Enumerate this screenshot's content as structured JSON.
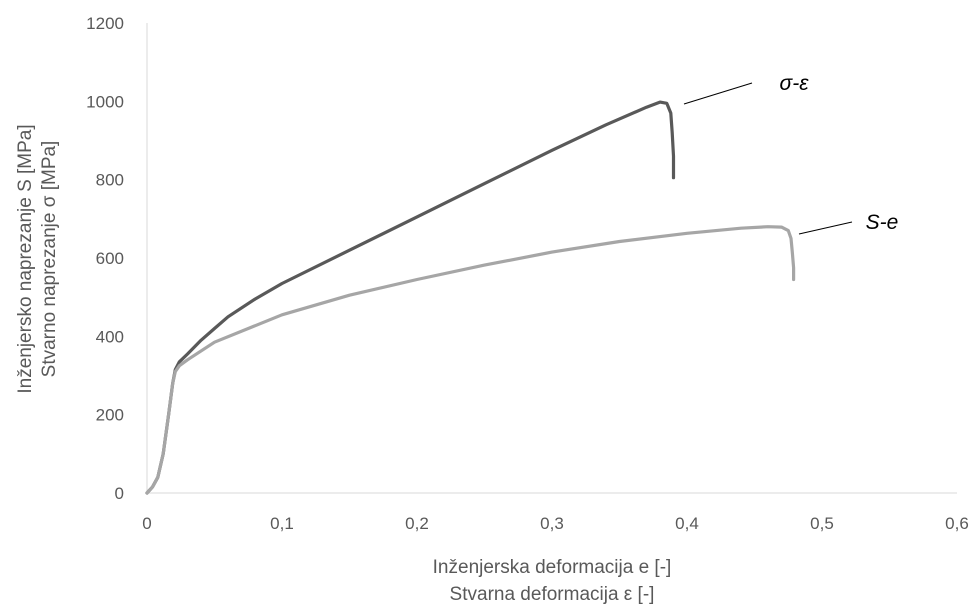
{
  "chart_data": {
    "type": "line",
    "xlabel": "Inženjerska deformacija e [-]",
    "xlabel_secondary": "Stvarna deformacija ε [-]",
    "ylabel": "Inženjersko naprezanje S [MPa]",
    "ylabel_secondary": "Stvarno naprezanje σ [MPa]",
    "xlim": [
      0,
      0.6
    ],
    "ylim": [
      0,
      1200
    ],
    "x_ticks": [
      0,
      0.1,
      0.2,
      0.3,
      0.4,
      0.5,
      0.6
    ],
    "x_tick_labels": [
      "0",
      "0,1",
      "0,2",
      "0,3",
      "0,4",
      "0,5",
      "0,6"
    ],
    "y_ticks": [
      0,
      200,
      400,
      600,
      800,
      1000,
      1200
    ],
    "y_tick_labels": [
      "0",
      "200",
      "400",
      "600",
      "800",
      "1000",
      "1200"
    ],
    "grid": false,
    "legend": "none",
    "series": [
      {
        "name": "σ-ε",
        "color": "#595959",
        "x": [
          0,
          0.004,
          0.008,
          0.012,
          0.016,
          0.019,
          0.021,
          0.024,
          0.03,
          0.04,
          0.05,
          0.06,
          0.08,
          0.1,
          0.15,
          0.2,
          0.25,
          0.3,
          0.34,
          0.37,
          0.38,
          0.385,
          0.388,
          0.389,
          0.39,
          0.39
        ],
        "y": [
          0,
          15,
          40,
          100,
          200,
          280,
          315,
          335,
          355,
          390,
          420,
          450,
          495,
          535,
          620,
          705,
          790,
          875,
          940,
          985,
          998,
          995,
          970,
          920,
          860,
          805
        ]
      },
      {
        "name": "S-e",
        "color": "#a6a6a6",
        "x": [
          0,
          0.004,
          0.008,
          0.012,
          0.016,
          0.019,
          0.021,
          0.024,
          0.03,
          0.05,
          0.1,
          0.15,
          0.2,
          0.25,
          0.3,
          0.35,
          0.4,
          0.44,
          0.46,
          0.47,
          0.475,
          0.477,
          0.478,
          0.479,
          0.479
        ],
        "y": [
          0,
          15,
          40,
          100,
          200,
          280,
          310,
          325,
          340,
          385,
          455,
          505,
          545,
          582,
          615,
          642,
          663,
          676,
          680,
          679,
          670,
          650,
          615,
          575,
          545
        ]
      }
    ],
    "annotations": [
      {
        "text": "σ-ε",
        "series": "σ-ε"
      },
      {
        "text": "S-e",
        "series": "S-e"
      }
    ]
  }
}
